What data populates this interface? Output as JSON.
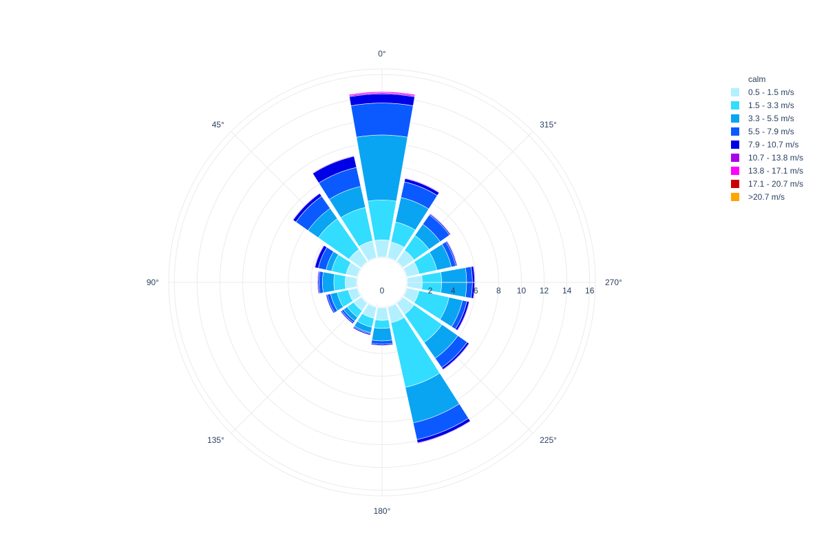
{
  "chart_data": {
    "type": "barpolar",
    "angular_axis": {
      "direction": "counterclockwise",
      "rotation_zero_at": "top",
      "ticks": [
        {
          "angle": 0,
          "label": "0°"
        },
        {
          "angle": 45,
          "label": "45°"
        },
        {
          "angle": 90,
          "label": "90°"
        },
        {
          "angle": 135,
          "label": "135°"
        },
        {
          "angle": 180,
          "label": "180°"
        },
        {
          "angle": 225,
          "label": "225°"
        },
        {
          "angle": 270,
          "label": "270°"
        },
        {
          "angle": 315,
          "label": "315°"
        }
      ]
    },
    "radial_axis": {
      "range": [
        0,
        16.5
      ],
      "tick_angle": 270,
      "ticks": [
        {
          "value": 0,
          "label": "0"
        },
        {
          "value": 2,
          "label": "2"
        },
        {
          "value": 4,
          "label": "4"
        },
        {
          "value": 6,
          "label": "6"
        },
        {
          "value": 8,
          "label": "8"
        },
        {
          "value": 10,
          "label": "10"
        },
        {
          "value": 12,
          "label": "12"
        },
        {
          "value": 14,
          "label": "14"
        },
        {
          "value": 16,
          "label": "16"
        }
      ],
      "hole_value": 1.2
    },
    "directions": [
      0,
      22.5,
      45,
      67.5,
      90,
      112.5,
      135,
      157.5,
      180,
      202.5,
      225,
      247.5,
      270,
      292.5,
      315,
      337.5
    ],
    "bar_width_deg": 20,
    "legend": {
      "title": "calm",
      "placement": "top-right"
    },
    "series": [
      {
        "name": "0.5 - 1.5 m/s",
        "color": "#b3f0ff",
        "values": [
          1.5,
          1.5,
          1.3,
          1.0,
          1.0,
          0.8,
          0.8,
          1.0,
          1.1,
          1.4,
          1.2,
          1.1,
          1.3,
          1.1,
          1.2,
          1.4
        ]
      },
      {
        "name": "1.5 - 3.3 m/s",
        "color": "#33ddff",
        "values": [
          3.5,
          3.0,
          3.3,
          1.3,
          1.0,
          1.0,
          0.7,
          0.8,
          0.7,
          5.8,
          3.0,
          2.7,
          1.7,
          1.6,
          1.6,
          1.8
        ]
      },
      {
        "name": "3.3 - 5.5 m/s",
        "color": "#0aa5f2",
        "values": [
          5.7,
          1.9,
          1.1,
          0.5,
          1.0,
          0.6,
          0.4,
          0.5,
          1.1,
          3.2,
          1.7,
          1.2,
          2.2,
          1.3,
          1.2,
          2.2
        ]
      },
      {
        "name": "5.5 - 7.9 m/s",
        "color": "#0a5aff",
        "values": [
          2.8,
          1.7,
          1.3,
          0.7,
          0.3,
          0.3,
          0.2,
          0.1,
          0.3,
          1.5,
          1.0,
          0.4,
          0.5,
          0.4,
          1.0,
          1.4
        ]
      },
      {
        "name": "7.9 - 10.7 m/s",
        "color": "#0000e6",
        "values": [
          0.8,
          1.0,
          0.3,
          0.3,
          0.1,
          0.1,
          0.1,
          0.1,
          0.1,
          0.3,
          0.2,
          0.2,
          0.2,
          0.1,
          0.1,
          0.3
        ]
      },
      {
        "name": "10.7 - 13.8 m/s",
        "color": "#a900e6",
        "values": [
          0.1,
          0.05,
          0.05,
          0.05,
          0.05,
          0,
          0,
          0,
          0,
          0.05,
          0.05,
          0.05,
          0.05,
          0.05,
          0.05,
          0.05
        ]
      },
      {
        "name": "13.8 - 17.1 m/s",
        "color": "#ff00ff",
        "values": [
          0.1,
          0,
          0,
          0,
          0,
          0,
          0,
          0,
          0,
          0,
          0,
          0,
          0,
          0,
          0,
          0
        ]
      },
      {
        "name": "17.1 - 20.7 m/s",
        "color": "#cc0000",
        "values": [
          0,
          0,
          0,
          0,
          0,
          0,
          0,
          0,
          0,
          0,
          0,
          0,
          0,
          0,
          0,
          0
        ]
      },
      {
        "name": ">20.7 m/s",
        "color": "#ffa500",
        "values": [
          0,
          0,
          0,
          0,
          0,
          0,
          0,
          0,
          0,
          0,
          0,
          0,
          0,
          0,
          0,
          0
        ]
      }
    ],
    "grid": true
  }
}
